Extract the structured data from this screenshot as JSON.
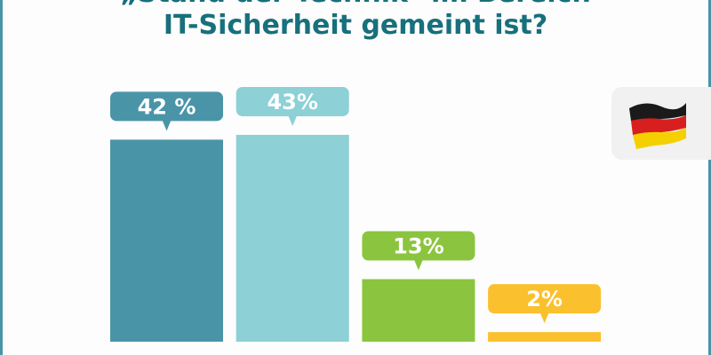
{
  "title": {
    "line1": "„Stand der Technik\" im Bereich",
    "line2": "IT-Sicherheit gemeint ist?"
  },
  "flag_icon": "germany-flag-icon",
  "chart_data": {
    "type": "bar",
    "categories": [
      "",
      "",
      "",
      ""
    ],
    "values": [
      42,
      43,
      13,
      2
    ],
    "data_labels": [
      "42 %",
      "43%",
      "13%",
      "2%"
    ],
    "colors": [
      "#4a94a8",
      "#8dd0d6",
      "#8bc53f",
      "#fbc02d"
    ],
    "ylim": [
      0,
      45
    ],
    "grid": false,
    "axes_visible": false
  }
}
